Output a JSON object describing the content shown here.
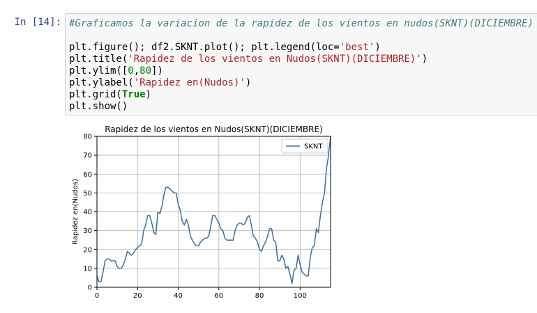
{
  "cell": {
    "prompt": "In [14]:",
    "code": {
      "comment": "#Graficamos la variacion de la rapidez de los vientos en nudos(SKNT)(DICIEMBRE)",
      "line2": "plt.figure(); df2.SKNT.plot(); plt.legend(loc=",
      "line2_str": "'best'",
      "line2_end": ")",
      "line3": "plt.title(",
      "line3_str": "'Rapidez de los vientos en Nudos(SKNT)(DICIEMBRE)'",
      "line3_end": ")",
      "line4": "plt.ylim([",
      "line4_n1": "0",
      "line4_comma": ",",
      "line4_n2": "80",
      "line4_end": "])",
      "line5": "plt.ylabel(",
      "line5_str": "'Rapidez en(Nudos)'",
      "line5_end": ")",
      "line6": "plt.grid(",
      "line6_kw": "True",
      "line6_end": ")",
      "line7": "plt.show()"
    }
  },
  "chart_data": {
    "type": "line",
    "title": "Rapidez de los vientos en Nudos(SKNT)(DICIEMBRE)",
    "xlabel": "",
    "ylabel": "Rapidez en(Nudos)",
    "xlim": [
      0,
      115
    ],
    "ylim": [
      0,
      80
    ],
    "xticks": [
      0,
      20,
      40,
      60,
      80,
      100
    ],
    "yticks": [
      0,
      10,
      20,
      30,
      40,
      50,
      60,
      70,
      80
    ],
    "grid": true,
    "legend": "top-right",
    "line_color": "#3a6ea5",
    "series": [
      {
        "name": "SKNT",
        "x": [
          0,
          1,
          2,
          3,
          4,
          5,
          6,
          7,
          8,
          9,
          10,
          11,
          12,
          13,
          14,
          15,
          16,
          17,
          18,
          19,
          20,
          21,
          22,
          23,
          24,
          25,
          26,
          27,
          28,
          29,
          30,
          31,
          32,
          33,
          34,
          35,
          36,
          37,
          38,
          39,
          40,
          41,
          42,
          43,
          44,
          45,
          46,
          47,
          48,
          49,
          50,
          51,
          52,
          53,
          54,
          55,
          56,
          57,
          58,
          59,
          60,
          61,
          62,
          63,
          64,
          65,
          66,
          67,
          68,
          69,
          70,
          71,
          72,
          73,
          74,
          75,
          76,
          77,
          78,
          79,
          80,
          81,
          82,
          83,
          84,
          85,
          86,
          87,
          88,
          89,
          90,
          91,
          92,
          93,
          94,
          95,
          96,
          97,
          98,
          99,
          100,
          101,
          102,
          103,
          104,
          105,
          106,
          107,
          108,
          109,
          110,
          111,
          112,
          113,
          114,
          115
        ],
        "values": [
          6,
          3,
          3,
          8,
          14,
          15,
          15,
          14,
          14,
          14,
          11,
          10,
          10,
          12,
          15,
          19,
          18,
          17,
          18,
          20,
          21,
          22,
          23,
          30,
          33,
          38,
          38,
          34,
          29,
          28,
          40,
          39,
          43,
          49,
          53,
          53,
          52,
          51,
          50,
          50,
          44,
          41,
          35,
          33,
          36,
          33,
          27,
          25,
          23,
          22,
          22,
          24,
          25,
          26,
          26,
          27,
          32,
          38,
          38,
          36,
          34,
          31,
          30,
          26,
          25,
          25,
          25,
          25,
          30,
          33,
          34,
          34,
          33,
          34,
          37,
          38,
          33,
          27,
          26,
          24,
          20,
          19,
          22,
          24,
          27,
          31,
          31,
          25,
          24,
          14,
          14,
          17,
          15,
          10,
          11,
          7,
          2,
          9,
          10,
          17,
          12,
          8,
          7,
          6,
          6,
          16,
          21,
          22,
          31,
          29,
          38,
          45,
          50,
          63,
          70,
          80
        ]
      }
    ]
  }
}
